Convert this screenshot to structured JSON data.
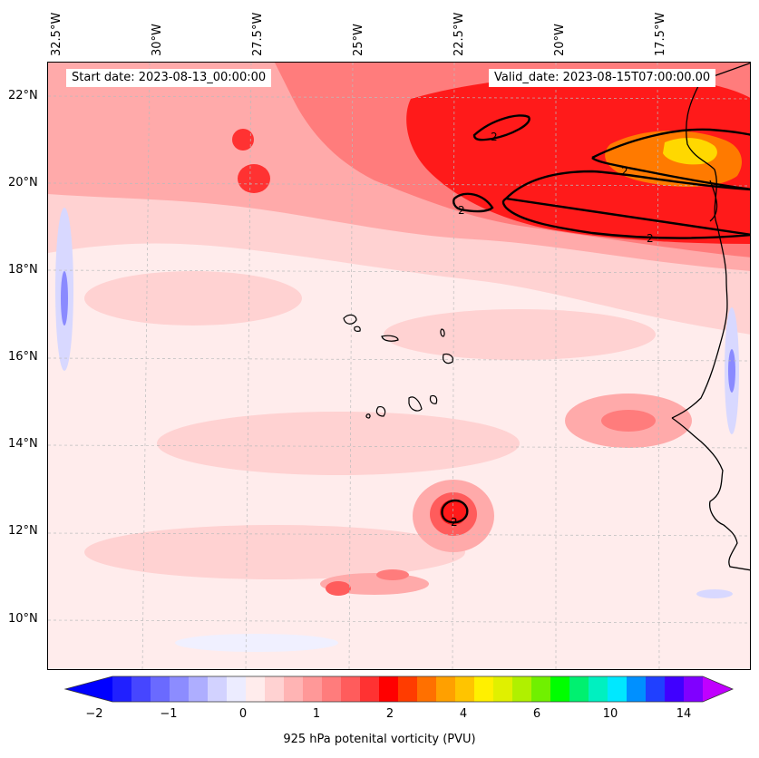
{
  "map": {
    "start_label": "Start date: 2023-08-13_00:00:00",
    "valid_label": "Valid_date: 2023-08-15T07:00:00.00",
    "lon_labels": [
      "32.5°W",
      "30°W",
      "27.5°W",
      "25°W",
      "22.5°W",
      "20°W",
      "17.5°W"
    ],
    "lat_labels": [
      "22°N",
      "20°N",
      "18°N",
      "16°N",
      "14°N",
      "12°N",
      "10°N"
    ],
    "contour_level_label": "2",
    "colors": {
      "background": "#ffecec",
      "light": "#ffd2d2",
      "medium": "#ffaaaa",
      "strong": "#ff6a6a",
      "red": "#ff1a1a",
      "orange": "#ff7a00",
      "yellow": "#ffd800",
      "blue_light": "#d8d8ff",
      "blue": "#8a8aff"
    }
  },
  "colorbar": {
    "label": "925 hPa potenital vorticity (PVU)",
    "tick_labels": [
      "−2",
      "−1",
      "0",
      "1",
      "2",
      "4",
      "6",
      "10",
      "14"
    ],
    "colors": [
      "#0000ff",
      "#2020ff",
      "#4646ff",
      "#6a6aff",
      "#8c8cff",
      "#aeaeff",
      "#d2d2ff",
      "#ececff",
      "#ffecec",
      "#ffd2d2",
      "#ffb4b4",
      "#ff9898",
      "#ff7c7c",
      "#ff5c5c",
      "#ff3232",
      "#ff0000",
      "#ff3c00",
      "#ff7000",
      "#ffa000",
      "#ffc400",
      "#fff000",
      "#e0f000",
      "#b0f000",
      "#70f000",
      "#00ff00",
      "#00f070",
      "#00f0c0",
      "#00e8ff",
      "#0090ff",
      "#2040ff",
      "#4000ff",
      "#8000ff",
      "#c000ff"
    ]
  }
}
